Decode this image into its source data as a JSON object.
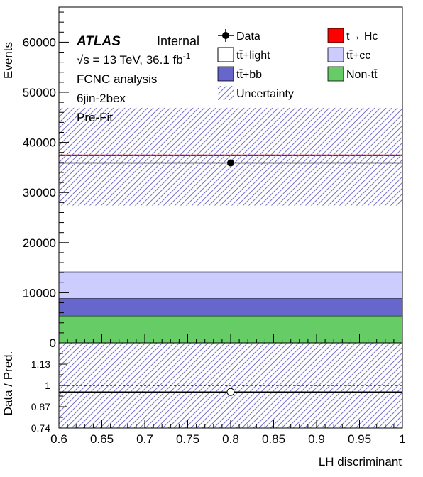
{
  "chart_data": {
    "type": "bar",
    "title": "",
    "xlabel": "LH discriminant",
    "ylabel": "Events",
    "ratio_ylabel": "Data / Pred.",
    "xlim": [
      0.6,
      1.0
    ],
    "ylim": [
      0,
      67000
    ],
    "ratio_ylim": [
      0.74,
      1.26
    ],
    "x_ticks": [
      "0.6",
      "0.65",
      "0.7",
      "0.75",
      "0.8",
      "0.85",
      "0.9",
      "0.95",
      "1"
    ],
    "y_ticks": [
      "0",
      "10000",
      "20000",
      "30000",
      "40000",
      "50000",
      "60000"
    ],
    "ratio_ticks": [
      "0.74",
      "0.87",
      "1",
      "1.13"
    ],
    "bin": [
      0.6,
      1.0
    ],
    "stack": [
      {
        "name": "Non-tt̄",
        "value": 5400,
        "color": "#66cc66"
      },
      {
        "name": "tt̄+bb",
        "value": 3500,
        "color": "#6666cc"
      },
      {
        "name": "tt̄+cc",
        "value": 5300,
        "color": "#ccccff"
      },
      {
        "name": "tt̄+light",
        "value": 23200,
        "color": "#ffffff"
      },
      {
        "name": "t→ Hc",
        "value": 10,
        "color": "#ff0000"
      }
    ],
    "total_prediction": 37410,
    "uncertainty": [
      27400,
      46900
    ],
    "data": {
      "name": "Data",
      "x": 0.8,
      "y": 35900
    },
    "ratio": {
      "x": 0.8,
      "y": 0.96
    },
    "grid": false,
    "legend_placement": "top-right"
  },
  "labels": {
    "atlas": "ATLAS",
    "internal": "Internal",
    "energy": "√s = 13 TeV, 36.1 fb",
    "energy_sup": "-1",
    "analysis": "FCNC analysis",
    "region": "6jin-2bex",
    "fit": "Pre-Fit"
  },
  "legend": {
    "data": "Data",
    "hc": "t→ Hc",
    "light": "tt̄+light",
    "cc": "tt̄+cc",
    "bb": "tt̄+bb",
    "nontt": "Non-tt̄",
    "unc": "Uncertainty"
  }
}
